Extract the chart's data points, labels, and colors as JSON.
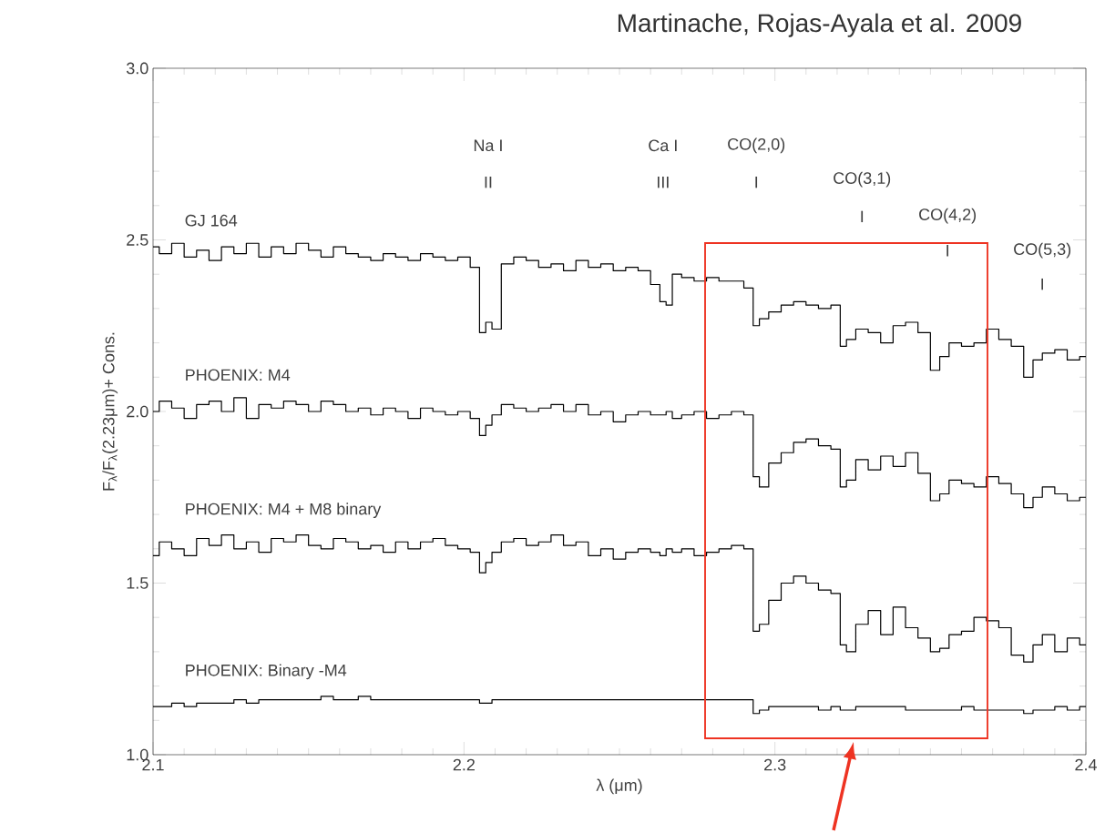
{
  "chart_data": {
    "type": "step",
    "xlabel": "λ (μm)",
    "ylabel": "F$_{λ}$/F$_{λ}$(2.23μm)+ Cons.",
    "xlim": [
      2.1,
      2.4
    ],
    "ylim": [
      1.0,
      3.0
    ],
    "xticks": [
      2.1,
      2.2,
      2.3,
      2.4
    ],
    "yticks": [
      {
        "value": 1,
        "label": "1.0"
      },
      {
        "value": 1.5,
        "label": "1.5"
      },
      {
        "value": 2,
        "label": "2.0"
      },
      {
        "value": 2.5,
        "label": "2.5"
      },
      {
        "value": 3,
        "label": "3.0"
      }
    ],
    "x": [
      2.1,
      2.104,
      2.108,
      2.112,
      2.116,
      2.12,
      2.124,
      2.128,
      2.132,
      2.136,
      2.14,
      2.144,
      2.148,
      2.152,
      2.156,
      2.16,
      2.164,
      2.168,
      2.172,
      2.176,
      2.18,
      2.184,
      2.188,
      2.192,
      2.196,
      2.2,
      2.204,
      2.206,
      2.208,
      2.21,
      2.214,
      2.218,
      2.222,
      2.226,
      2.23,
      2.234,
      2.238,
      2.242,
      2.246,
      2.25,
      2.254,
      2.258,
      2.262,
      2.264,
      2.266,
      2.268,
      2.272,
      2.276,
      2.28,
      2.284,
      2.288,
      2.292,
      2.294,
      2.296,
      2.3,
      2.304,
      2.308,
      2.312,
      2.316,
      2.32,
      2.322,
      2.324,
      2.328,
      2.332,
      2.336,
      2.34,
      2.344,
      2.348,
      2.352,
      2.354,
      2.358,
      2.362,
      2.366,
      2.37,
      2.374,
      2.378,
      2.382,
      2.384,
      2.388,
      2.392,
      2.396,
      2.4
    ],
    "series": [
      {
        "name": "GJ 164",
        "color": "#000000",
        "values": [
          2.48,
          2.46,
          2.49,
          2.45,
          2.47,
          2.44,
          2.48,
          2.46,
          2.49,
          2.45,
          2.48,
          2.46,
          2.49,
          2.47,
          2.45,
          2.48,
          2.46,
          2.45,
          2.44,
          2.46,
          2.45,
          2.44,
          2.46,
          2.45,
          2.44,
          2.45,
          2.42,
          2.23,
          2.26,
          2.24,
          2.43,
          2.45,
          2.44,
          2.42,
          2.43,
          2.41,
          2.44,
          2.42,
          2.43,
          2.41,
          2.42,
          2.41,
          2.37,
          2.32,
          2.31,
          2.4,
          2.39,
          2.38,
          2.39,
          2.38,
          2.38,
          2.36,
          2.25,
          2.27,
          2.29,
          2.31,
          2.32,
          2.31,
          2.3,
          2.31,
          2.19,
          2.21,
          2.24,
          2.23,
          2.2,
          2.25,
          2.26,
          2.23,
          2.12,
          2.16,
          2.2,
          2.19,
          2.2,
          2.24,
          2.21,
          2.19,
          2.1,
          2.15,
          2.17,
          2.18,
          2.15,
          2.16
        ]
      },
      {
        "name": "PHOENIX: M4",
        "color": "#000000",
        "values": [
          2.0,
          2.03,
          2.01,
          1.98,
          2.02,
          2.03,
          2.0,
          2.04,
          1.98,
          2.02,
          2.01,
          2.03,
          2.02,
          2.0,
          2.03,
          2.02,
          2.0,
          2.01,
          1.99,
          2.01,
          2.0,
          1.98,
          2.01,
          2.0,
          1.99,
          2.0,
          1.98,
          1.93,
          1.96,
          1.99,
          2.02,
          2.01,
          2.0,
          2.01,
          2.02,
          2.0,
          2.02,
          1.99,
          2.0,
          1.97,
          1.99,
          2.0,
          1.99,
          1.99,
          2.0,
          1.98,
          1.99,
          2.0,
          1.98,
          1.99,
          2.0,
          1.99,
          1.81,
          1.78,
          1.85,
          1.88,
          1.91,
          1.92,
          1.9,
          1.89,
          1.78,
          1.8,
          1.86,
          1.83,
          1.87,
          1.84,
          1.88,
          1.82,
          1.74,
          1.76,
          1.8,
          1.79,
          1.78,
          1.81,
          1.79,
          1.76,
          1.72,
          1.75,
          1.78,
          1.76,
          1.74,
          1.75
        ]
      },
      {
        "name": "PHOENIX: M4 + M8 binary",
        "color": "#000000",
        "values": [
          1.58,
          1.62,
          1.6,
          1.58,
          1.63,
          1.61,
          1.64,
          1.6,
          1.62,
          1.59,
          1.63,
          1.62,
          1.64,
          1.61,
          1.6,
          1.63,
          1.62,
          1.6,
          1.61,
          1.59,
          1.62,
          1.6,
          1.62,
          1.63,
          1.61,
          1.6,
          1.59,
          1.53,
          1.56,
          1.59,
          1.62,
          1.63,
          1.61,
          1.62,
          1.64,
          1.61,
          1.62,
          1.58,
          1.6,
          1.57,
          1.59,
          1.6,
          1.59,
          1.58,
          1.6,
          1.59,
          1.6,
          1.58,
          1.59,
          1.6,
          1.61,
          1.6,
          1.36,
          1.38,
          1.45,
          1.5,
          1.52,
          1.5,
          1.48,
          1.47,
          1.32,
          1.3,
          1.38,
          1.42,
          1.35,
          1.43,
          1.37,
          1.34,
          1.3,
          1.31,
          1.35,
          1.36,
          1.4,
          1.39,
          1.37,
          1.29,
          1.27,
          1.32,
          1.35,
          1.3,
          1.34,
          1.32
        ]
      },
      {
        "name": "PHOENIX: Binary -M4",
        "color": "#000000",
        "values": [
          1.14,
          1.14,
          1.15,
          1.14,
          1.15,
          1.15,
          1.15,
          1.16,
          1.15,
          1.16,
          1.16,
          1.16,
          1.16,
          1.16,
          1.17,
          1.16,
          1.16,
          1.17,
          1.16,
          1.16,
          1.16,
          1.16,
          1.16,
          1.16,
          1.16,
          1.16,
          1.16,
          1.15,
          1.15,
          1.16,
          1.16,
          1.16,
          1.16,
          1.16,
          1.16,
          1.16,
          1.16,
          1.16,
          1.16,
          1.16,
          1.16,
          1.16,
          1.16,
          1.16,
          1.16,
          1.16,
          1.16,
          1.16,
          1.16,
          1.16,
          1.16,
          1.16,
          1.12,
          1.13,
          1.14,
          1.14,
          1.14,
          1.14,
          1.13,
          1.14,
          1.13,
          1.13,
          1.14,
          1.14,
          1.14,
          1.14,
          1.13,
          1.13,
          1.13,
          1.13,
          1.13,
          1.14,
          1.13,
          1.13,
          1.13,
          1.13,
          1.12,
          1.13,
          1.13,
          1.14,
          1.13,
          1.14
        ]
      }
    ],
    "annotations": [
      "Martinache, Rojas-Ayala et al. 2009",
      "Na I",
      "II",
      "Ca I",
      "III",
      "CO(2,0)",
      "I",
      "CO(3,1)",
      "I",
      "CO(4,2)",
      "I",
      "CO(5,3)",
      "I"
    ]
  }
}
